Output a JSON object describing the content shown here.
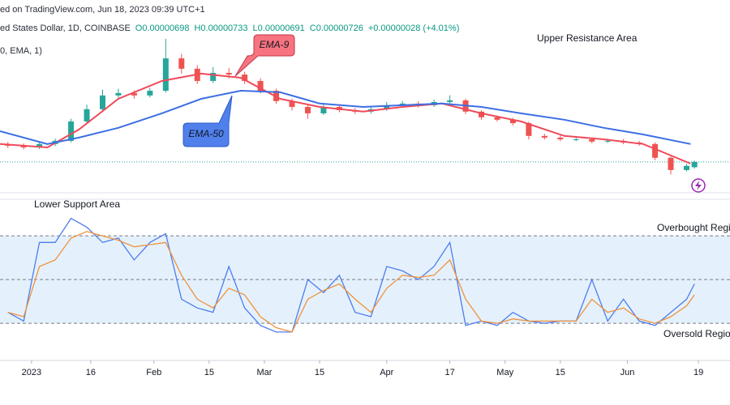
{
  "chart_data": [
    {
      "type": "candlestick",
      "title": "ed on TradingView.com, Jun 18, 2023 09:39 UTC+1",
      "subtitle": "ed States Dollar, 1D, COINBASE",
      "ohlc_labels": [
        "O0.00000698",
        "H0.00000733",
        "L0.00000691",
        "C0.00000726",
        "+0.00000028 (+4.01%)"
      ],
      "indicator_label": "0, EMA, 1)",
      "annotations": [
        "Upper Resistance Area"
      ],
      "up_color": "#26a69a",
      "down_color": "#ef5350",
      "xlim": [
        "2022-12-24",
        "2023-06-27"
      ],
      "ylim": [
        5.32e-06,
        1.586e-05
      ],
      "x": [
        "2022-12-26",
        "2022-12-30",
        "2023-01-03",
        "2023-01-07",
        "2023-01-11",
        "2023-01-15",
        "2023-01-19",
        "2023-01-23",
        "2023-01-27",
        "2023-01-31",
        "2023-02-04",
        "2023-02-08",
        "2023-02-12",
        "2023-02-16",
        "2023-02-20",
        "2023-02-24",
        "2023-02-28",
        "2023-03-04",
        "2023-03-08",
        "2023-03-12",
        "2023-03-16",
        "2023-03-20",
        "2023-03-24",
        "2023-03-28",
        "2023-04-01",
        "2023-04-05",
        "2023-04-09",
        "2023-04-13",
        "2023-04-17",
        "2023-04-21",
        "2023-04-25",
        "2023-04-29",
        "2023-05-03",
        "2023-05-07",
        "2023-05-11",
        "2023-05-15",
        "2023-05-19",
        "2023-05-23",
        "2023-05-27",
        "2023-05-31",
        "2023-06-04",
        "2023-06-08",
        "2023-06-12",
        "2023-06-16",
        "2023-06-18"
      ],
      "open": [
        8.2e-06,
        8.12e-06,
        8.03e-06,
        8.21e-06,
        8.38e-06,
        9.41e-06,
        1.006e-05,
        1.079e-05,
        1.092e-05,
        1.079e-05,
        1.104e-05,
        1.276e-05,
        1.221e-05,
        1.156e-05,
        1.199e-05,
        1.19e-05,
        1.156e-05,
        1.104e-05,
        1.049e-05,
        1.018e-05,
        9.84e-06,
        1.018e-05,
        1.001e-05,
        9.93e-06,
        1.006e-05,
        1.027e-05,
        1.036e-05,
        1.027e-05,
        1.044e-05,
        1.053e-05,
        9.93e-06,
        9.63e-06,
        9.5e-06,
        9.32e-06,
        8.64e-06,
        8.55e-06,
        8.46e-06,
        8.46e-06,
        8.34e-06,
        8.38e-06,
        8.29e-06,
        8.21e-06,
        7.48e-06,
        6.83e-06,
        6.98e-06
      ],
      "high": [
        8.32e-06,
        8.24e-06,
        8.33e-06,
        8.5e-06,
        9.55e-06,
        1.03e-05,
        1.11e-05,
        1.115e-05,
        1.105e-05,
        1.12e-05,
        1.38e-05,
        1.3e-05,
        1.24e-05,
        1.23e-05,
        1.225e-05,
        1.205e-05,
        1.17e-05,
        1.115e-05,
        1.062e-05,
        1.03e-05,
        1.035e-05,
        1.03e-05,
        1.012e-05,
        1.018e-05,
        1.045e-05,
        1.05e-05,
        1.048e-05,
        1.058e-05,
        1.08e-05,
        1.062e-05,
        1e-05,
        9.72e-06,
        9.6e-06,
        9.4e-06,
        8.75e-06,
        8.66e-06,
        8.58e-06,
        8.56e-06,
        8.5e-06,
        8.48e-06,
        8.38e-06,
        8.3e-06,
        7.55e-06,
        7.15e-06,
        7.33e-06
      ],
      "low": [
        8e-06,
        7.92e-06,
        7.95e-06,
        8.1e-06,
        8.3e-06,
        9.3e-06,
        9.95e-06,
        1.06e-05,
        1.062e-05,
        1.068e-05,
        1.095e-05,
        1.195e-05,
        1.14e-05,
        1.145e-05,
        1.17e-05,
        1.14e-05,
        1.09e-05,
        1.035e-05,
        1e-05,
        9.55e-06,
        9.75e-06,
        9.9e-06,
        9.8e-06,
        9.82e-06,
        9.98e-06,
        1.015e-05,
        1.015e-05,
        1.018e-05,
        1.035e-05,
        9.8e-06,
        9.5e-06,
        9.4e-06,
        9.2e-06,
        8.45e-06,
        8.45e-06,
        8.36e-06,
        8.36e-06,
        8.25e-06,
        8.26e-06,
        8.2e-06,
        8.12e-06,
        7.35e-06,
        6.6e-06,
        6.75e-06,
        6.91e-06
      ],
      "close": [
        8.12e-06,
        8.03e-06,
        8.21e-06,
        8.38e-06,
        9.41e-06,
        1.006e-05,
        1.079e-05,
        1.092e-05,
        1.079e-05,
        1.104e-05,
        1.276e-05,
        1.221e-05,
        1.156e-05,
        1.199e-05,
        1.19e-05,
        1.156e-05,
        1.104e-05,
        1.049e-05,
        1.018e-05,
        9.84e-06,
        1.018e-05,
        1.001e-05,
        9.93e-06,
        1.006e-05,
        1.027e-05,
        1.036e-05,
        1.027e-05,
        1.044e-05,
        1.053e-05,
        9.93e-06,
        9.63e-06,
        9.5e-06,
        9.32e-06,
        8.64e-06,
        8.55e-06,
        8.46e-06,
        8.46e-06,
        8.34e-06,
        8.38e-06,
        8.29e-06,
        8.21e-06,
        7.48e-06,
        6.83e-06,
        7.05e-06,
        7.26e-06
      ],
      "series": [
        {
          "name": "EMA-9",
          "color": "#ef4a5a",
          "x": [
            "2022-12-24",
            "2023-01-05",
            "2023-01-13",
            "2023-01-23",
            "2023-02-03",
            "2023-02-13",
            "2023-02-23",
            "2023-03-05",
            "2023-03-15",
            "2023-03-26",
            "2023-04-05",
            "2023-04-15",
            "2023-04-25",
            "2023-05-05",
            "2023-05-16",
            "2023-05-26",
            "2023-06-05",
            "2023-06-17"
          ],
          "values": [
            8.21e-06,
            8.03e-06,
            8.98e-06,
            1.061e-05,
            1.156e-05,
            1.195e-05,
            1.173e-05,
            1.061e-05,
            1.018e-05,
            9.93e-06,
            1.018e-05,
            1.036e-05,
            9.84e-06,
            9.41e-06,
            8.64e-06,
            8.46e-06,
            8.21e-06,
            7.17e-06
          ]
        },
        {
          "name": "EMA-50",
          "color": "#3c6fe4",
          "x": [
            "2022-12-24",
            "2023-01-05",
            "2023-01-13",
            "2023-01-23",
            "2023-02-03",
            "2023-02-13",
            "2023-02-23",
            "2023-03-05",
            "2023-03-15",
            "2023-03-26",
            "2023-04-05",
            "2023-04-15",
            "2023-04-25",
            "2023-05-05",
            "2023-05-16",
            "2023-05-26",
            "2023-06-05",
            "2023-06-17"
          ],
          "values": [
            8.89e-06,
            8.21e-06,
            8.55e-06,
            9.07e-06,
            9.84e-06,
            1.061e-05,
            1.104e-05,
            1.096e-05,
            1.036e-05,
            1.018e-05,
            1.027e-05,
            1.036e-05,
            1.018e-05,
            9.84e-06,
            9.5e-06,
            9.07e-06,
            8.72e-06,
            8.21e-06
          ]
        }
      ]
    },
    {
      "type": "line",
      "annotations": [
        "Lower Support Area",
        "Overbought Regio",
        "Oversold Regio"
      ],
      "xlim": [
        "2022-12-24",
        "2023-06-27"
      ],
      "ylim": [
        13,
        86
      ],
      "band": [
        30,
        70
      ],
      "band_color": "#e4f1fc",
      "hlines": [
        70,
        50,
        30
      ],
      "xticks": [
        {
          "value": "2023-01-01",
          "label": "2023"
        },
        {
          "value": "2023-01-16",
          "label": "16"
        },
        {
          "value": "2023-02-01",
          "label": "Feb"
        },
        {
          "value": "2023-02-15",
          "label": "15"
        },
        {
          "value": "2023-03-01",
          "label": "Mar"
        },
        {
          "value": "2023-03-15",
          "label": "15"
        },
        {
          "value": "2023-04-01",
          "label": "Apr"
        },
        {
          "value": "2023-04-17",
          "label": "17"
        },
        {
          "value": "2023-05-01",
          "label": "May"
        },
        {
          "value": "2023-05-15",
          "label": "15"
        },
        {
          "value": "2023-06-01",
          "label": "Jun"
        },
        {
          "value": "2023-06-19",
          "label": "19"
        }
      ],
      "x": [
        "2022-12-26",
        "2022-12-30",
        "2023-01-03",
        "2023-01-07",
        "2023-01-11",
        "2023-01-15",
        "2023-01-19",
        "2023-01-23",
        "2023-01-27",
        "2023-01-31",
        "2023-02-04",
        "2023-02-08",
        "2023-02-12",
        "2023-02-16",
        "2023-02-20",
        "2023-02-24",
        "2023-02-28",
        "2023-03-04",
        "2023-03-08",
        "2023-03-12",
        "2023-03-16",
        "2023-03-20",
        "2023-03-24",
        "2023-03-28",
        "2023-04-01",
        "2023-04-05",
        "2023-04-09",
        "2023-04-13",
        "2023-04-17",
        "2023-04-21",
        "2023-04-25",
        "2023-04-29",
        "2023-05-03",
        "2023-05-07",
        "2023-05-11",
        "2023-05-15",
        "2023-05-19",
        "2023-05-23",
        "2023-05-27",
        "2023-05-31",
        "2023-06-04",
        "2023-06-08",
        "2023-06-12",
        "2023-06-16",
        "2023-06-18"
      ],
      "series": [
        {
          "color": "#4d7cf0",
          "values": [
            35,
            31,
            67,
            67,
            78,
            74,
            67,
            69,
            59,
            67,
            71,
            41,
            37,
            35,
            56,
            37,
            29,
            26,
            26,
            50,
            44,
            52,
            35,
            33,
            56,
            54,
            50,
            56,
            67,
            29,
            31,
            29,
            35,
            31,
            30,
            31,
            31,
            50,
            31,
            41,
            31,
            29,
            35,
            41,
            48
          ]
        },
        {
          "color": "#f0923a",
          "values": [
            35,
            33,
            56,
            59,
            69,
            72,
            70,
            68,
            65,
            66,
            67,
            52,
            41,
            37,
            46,
            43,
            33,
            28,
            26,
            41,
            45,
            48,
            41,
            35,
            46,
            52,
            51,
            52,
            59,
            41,
            31,
            30,
            32,
            31,
            31,
            31,
            31,
            41,
            35,
            37,
            32,
            30,
            33,
            38,
            43
          ]
        }
      ]
    }
  ]
}
